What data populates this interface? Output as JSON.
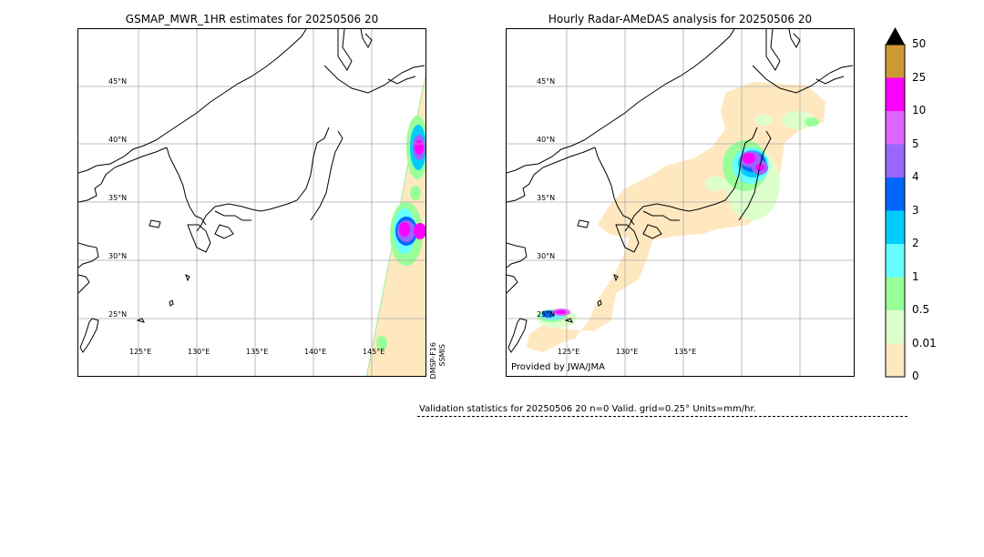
{
  "left_panel": {
    "title": "GSMAP_MWR_1HR estimates for 20250506 20",
    "lat_labels": [
      "45°N",
      "40°N",
      "35°N",
      "30°N",
      "25°N"
    ],
    "lon_labels": [
      "125°E",
      "130°E",
      "135°E",
      "140°E",
      "145°E"
    ],
    "satellite_line1": "DMSP-F16",
    "satellite_line2": "SSMIS"
  },
  "right_panel": {
    "title": "Hourly Radar-AMeDAS analysis for 20250506 20",
    "lat_labels": [
      "45°N",
      "40°N",
      "35°N",
      "30°N",
      "25°N"
    ],
    "lon_labels": [
      "125°E",
      "130°E",
      "135°E"
    ],
    "credit": "Provided by JWA/JMA"
  },
  "colorbar": {
    "labels": [
      "50",
      "25",
      "10",
      "5",
      "4",
      "3",
      "2",
      "1",
      "0.5",
      "0.01",
      "0"
    ],
    "colors": [
      "#cc9933",
      "#ff00ff",
      "#dd66ff",
      "#9966ff",
      "#0066ff",
      "#00ccff",
      "#66ffff",
      "#99ff99",
      "#ddffcc",
      "#ffe8c0"
    ],
    "extend_color": "#000000"
  },
  "validation": {
    "text": "Validation statistics for 20250506 20  n=0 Valid. grid=0.25° Units=mm/hr."
  }
}
